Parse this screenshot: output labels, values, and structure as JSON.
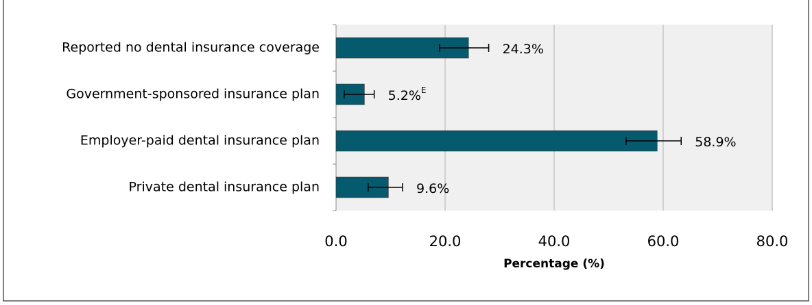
{
  "chart_data": {
    "type": "hbar",
    "x_label": "Percentage (%)",
    "categories": [
      "Reported no dental insurance coverage",
      "Government-sponsored insurance plan",
      "Employer-paid dental insurance plan",
      "Private dental insurance plan"
    ],
    "values": [
      24.3,
      5.2,
      58.9,
      9.6
    ],
    "value_labels": [
      "24.3%",
      "5.2%",
      "58.9%",
      "9.6%"
    ],
    "flags": [
      null,
      "E",
      null,
      null
    ],
    "ci_low": [
      19.0,
      1.5,
      53.2,
      5.9
    ],
    "ci_high": [
      28.0,
      7.0,
      63.3,
      12.2
    ],
    "color": "#065a6e",
    "xlim": [
      0,
      80
    ],
    "xticks": [
      {
        "value": 0,
        "label": "0.0"
      },
      {
        "value": 20,
        "label": "20.0"
      },
      {
        "value": 40,
        "label": "40.0"
      },
      {
        "value": 60,
        "label": "60.0"
      },
      {
        "value": 80,
        "label": "80.0"
      }
    ],
    "grid": true
  }
}
